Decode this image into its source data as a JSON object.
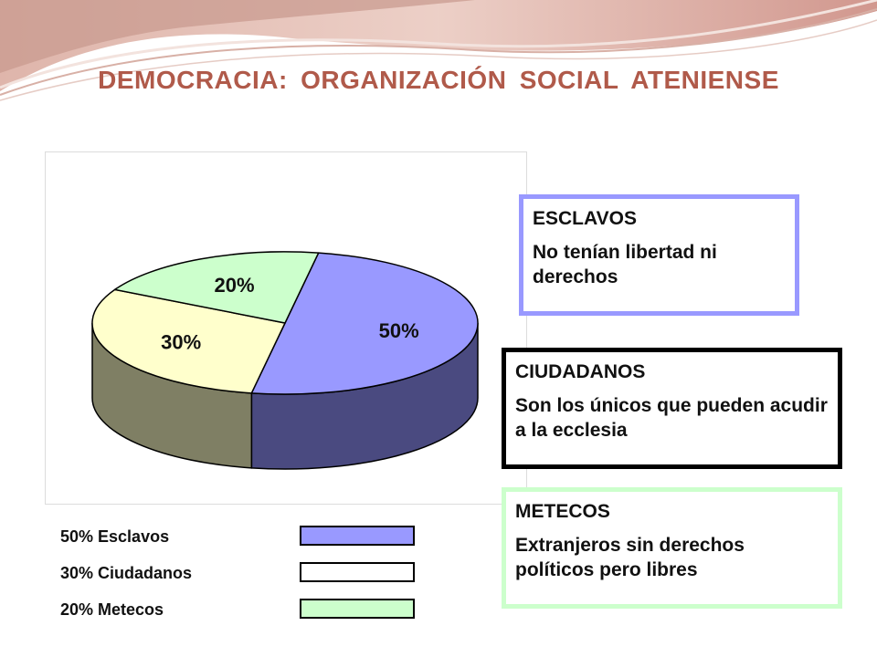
{
  "slide": {
    "title": "DEMOCRACIA:  ORGANIZACIÓN  SOCIAL ATENIENSE"
  },
  "chart_data": {
    "type": "pie",
    "style": "3d",
    "slices": [
      {
        "label": "50%",
        "value": 50,
        "name": "Esclavos",
        "top_color": "#9999ff",
        "side_color": "#4a4a80"
      },
      {
        "label": "30%",
        "value": 30,
        "name": "Ciudadanos",
        "top_color": "#ffffcc",
        "side_color": "#7f7f64"
      },
      {
        "label": "20%",
        "value": 20,
        "name": "Metecos",
        "top_color": "#ccffcc",
        "side_color": "#667f66"
      }
    ],
    "legend": [
      {
        "text": "50% Esclavos",
        "color": "#9999ff"
      },
      {
        "text": "30% Ciudadanos",
        "color": "#ffffff"
      },
      {
        "text": "20% Metecos",
        "color": "#ccffcc"
      }
    ],
    "legend_position": "bottom-left"
  },
  "boxes": [
    {
      "title": "ESCLAVOS",
      "text": "No tenían libertad ni derechos",
      "border_color": "#9999ff"
    },
    {
      "title": "CIUDADANOS",
      "text": "Son los únicos que pueden acudir a la ecclesia",
      "border_color": "#000000"
    },
    {
      "title": "METECOS",
      "text": "Extranjeros sin derechos políticos pero libres",
      "border_color": "#ccffcc"
    }
  ]
}
